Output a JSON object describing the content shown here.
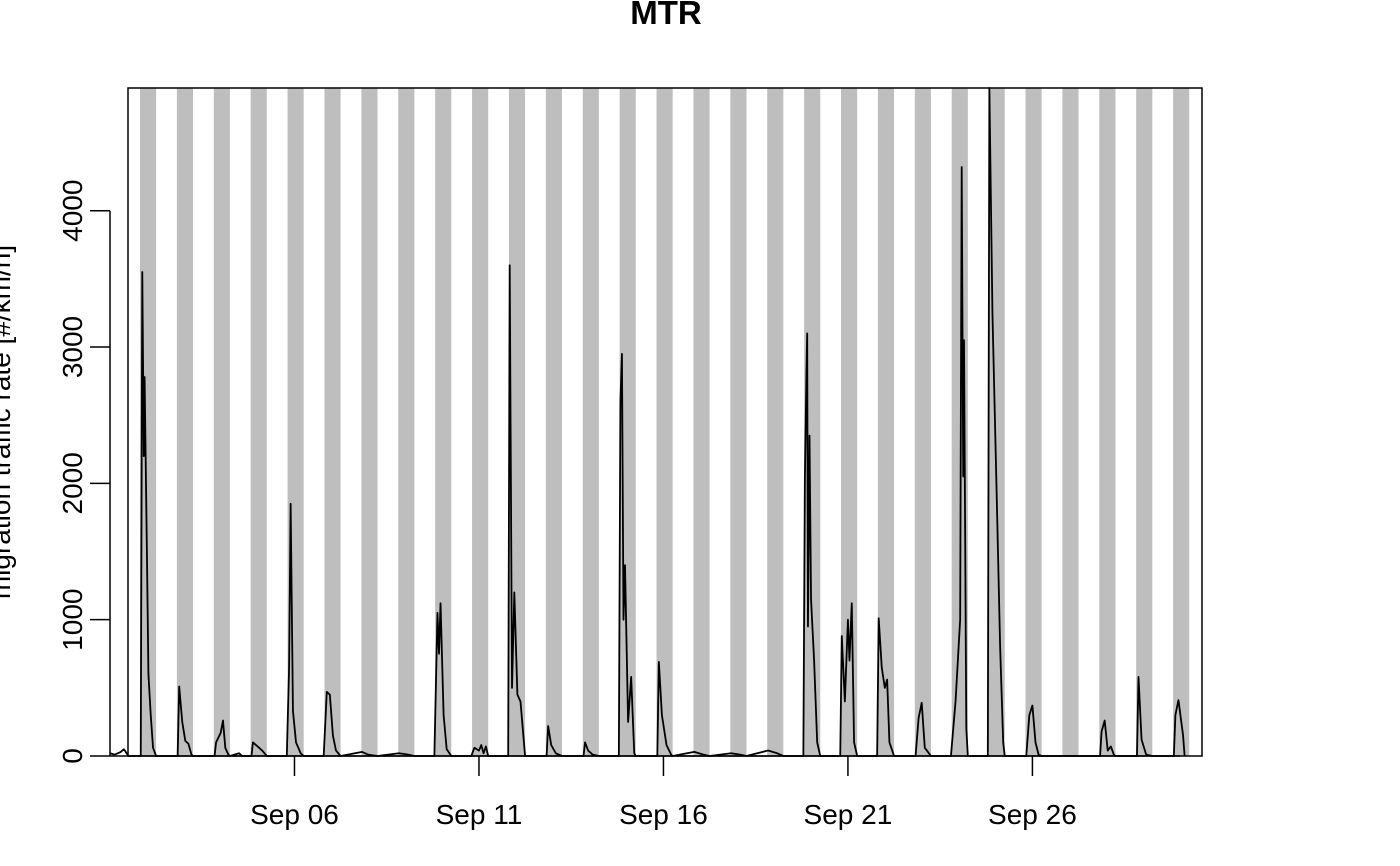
{
  "chart_data": {
    "type": "line",
    "title": "MTR",
    "ylabel": "migration traffic rate [#/km/h]",
    "xlabel": "",
    "x_range": [
      "2021-09-01",
      "2021-09-30"
    ],
    "ylim": [
      0,
      4900
    ],
    "y_ticks": [
      0,
      1000,
      2000,
      3000,
      4000
    ],
    "x_ticks": [
      {
        "date": "2021-09-06",
        "label": "Sep 06"
      },
      {
        "date": "2021-09-11",
        "label": "Sep 11"
      },
      {
        "date": "2021-09-16",
        "label": "Sep 16"
      },
      {
        "date": "2021-09-21",
        "label": "Sep 21"
      },
      {
        "date": "2021-09-26",
        "label": "Sep 26"
      }
    ],
    "grid": false,
    "legend": "none",
    "night_shading": {
      "color": "#bebebe",
      "nights": [
        [
          "2021-08-31 19:30",
          "2021-09-01 06:00"
        ],
        [
          "2021-09-01 19:30",
          "2021-09-02 06:00"
        ],
        [
          "2021-09-02 19:30",
          "2021-09-03 06:00"
        ],
        [
          "2021-09-03 19:30",
          "2021-09-04 06:00"
        ],
        [
          "2021-09-04 19:30",
          "2021-09-05 06:00"
        ],
        [
          "2021-09-05 19:30",
          "2021-09-06 06:00"
        ],
        [
          "2021-09-06 19:30",
          "2021-09-07 06:00"
        ],
        [
          "2021-09-07 19:30",
          "2021-09-08 06:00"
        ],
        [
          "2021-09-08 19:30",
          "2021-09-09 06:00"
        ],
        [
          "2021-09-09 19:30",
          "2021-09-10 06:00"
        ],
        [
          "2021-09-10 19:30",
          "2021-09-11 06:00"
        ],
        [
          "2021-09-11 19:30",
          "2021-09-12 06:00"
        ],
        [
          "2021-09-12 19:30",
          "2021-09-13 06:00"
        ],
        [
          "2021-09-13 19:30",
          "2021-09-14 06:00"
        ],
        [
          "2021-09-14 19:30",
          "2021-09-15 06:00"
        ],
        [
          "2021-09-15 19:30",
          "2021-09-16 06:00"
        ],
        [
          "2021-09-16 19:30",
          "2021-09-17 06:00"
        ],
        [
          "2021-09-17 19:30",
          "2021-09-18 06:00"
        ],
        [
          "2021-09-18 19:30",
          "2021-09-19 06:00"
        ],
        [
          "2021-09-19 19:30",
          "2021-09-20 06:00"
        ],
        [
          "2021-09-20 19:30",
          "2021-09-21 06:00"
        ],
        [
          "2021-09-21 19:30",
          "2021-09-22 06:00"
        ],
        [
          "2021-09-22 19:30",
          "2021-09-23 06:00"
        ],
        [
          "2021-09-23 19:30",
          "2021-09-24 06:00"
        ],
        [
          "2021-09-24 19:30",
          "2021-09-25 06:00"
        ],
        [
          "2021-09-25 19:30",
          "2021-09-26 06:00"
        ],
        [
          "2021-09-26 19:30",
          "2021-09-27 06:00"
        ],
        [
          "2021-09-27 19:30",
          "2021-09-28 06:00"
        ],
        [
          "2021-09-28 19:30",
          "2021-09-29 06:00"
        ],
        [
          "2021-09-29 19:30",
          "2021-09-30 06:00"
        ]
      ]
    },
    "line_color": "#000000",
    "series": [
      {
        "points": [
          [
            "2021-09-01 00:00",
            20
          ],
          [
            "2021-09-01 03:00",
            10
          ],
          [
            "2021-09-01 07:00",
            30
          ],
          [
            "2021-09-01 09:00",
            50
          ],
          [
            "2021-09-01 12:00",
            0
          ],
          [
            "2021-09-01 20:00",
            0
          ],
          [
            "2021-09-01 21:00",
            3550
          ],
          [
            "2021-09-01 22:00",
            2200
          ],
          [
            "2021-09-01 22:30",
            2780
          ],
          [
            "2021-09-02 00:00",
            1500
          ],
          [
            "2021-09-02 01:00",
            600
          ],
          [
            "2021-09-02 02:30",
            300
          ],
          [
            "2021-09-02 04:00",
            60
          ],
          [
            "2021-09-02 06:00",
            0
          ],
          [
            "2021-09-02 20:00",
            0
          ],
          [
            "2021-09-02 21:00",
            510
          ],
          [
            "2021-09-02 23:00",
            250
          ],
          [
            "2021-09-03 01:00",
            110
          ],
          [
            "2021-09-03 03:00",
            90
          ],
          [
            "2021-09-03 05:00",
            10
          ],
          [
            "2021-09-03 06:00",
            0
          ],
          [
            "2021-09-03 20:00",
            0
          ],
          [
            "2021-09-03 21:00",
            100
          ],
          [
            "2021-09-04 00:00",
            170
          ],
          [
            "2021-09-04 01:30",
            260
          ],
          [
            "2021-09-04 03:00",
            60
          ],
          [
            "2021-09-04 05:00",
            10
          ],
          [
            "2021-09-04 06:00",
            0
          ],
          [
            "2021-09-04 12:00",
            20
          ],
          [
            "2021-09-04 14:00",
            0
          ],
          [
            "2021-09-04 20:00",
            0
          ],
          [
            "2021-09-04 21:00",
            100
          ],
          [
            "2021-09-05 00:00",
            70
          ],
          [
            "2021-09-05 03:00",
            40
          ],
          [
            "2021-09-05 06:00",
            0
          ],
          [
            "2021-09-05 19:00",
            0
          ],
          [
            "2021-09-05 20:30",
            650
          ],
          [
            "2021-09-05 21:30",
            1850
          ],
          [
            "2021-09-05 23:00",
            330
          ],
          [
            "2021-09-06 01:00",
            100
          ],
          [
            "2021-09-06 04:00",
            20
          ],
          [
            "2021-09-06 06:00",
            0
          ],
          [
            "2021-09-06 19:00",
            0
          ],
          [
            "2021-09-06 21:00",
            470
          ],
          [
            "2021-09-06 23:00",
            450
          ],
          [
            "2021-09-07 01:00",
            150
          ],
          [
            "2021-09-07 03:00",
            40
          ],
          [
            "2021-09-07 06:00",
            0
          ],
          [
            "2021-09-07 20:00",
            30
          ],
          [
            "2021-09-08 00:00",
            10
          ],
          [
            "2021-09-08 06:00",
            0
          ],
          [
            "2021-09-08 20:00",
            20
          ],
          [
            "2021-09-09 02:00",
            10
          ],
          [
            "2021-09-09 06:00",
            0
          ],
          [
            "2021-09-09 19:00",
            0
          ],
          [
            "2021-09-09 21:00",
            1050
          ],
          [
            "2021-09-09 22:00",
            750
          ],
          [
            "2021-09-09 23:00",
            1120
          ],
          [
            "2021-09-10 01:00",
            300
          ],
          [
            "2021-09-10 03:00",
            50
          ],
          [
            "2021-09-10 06:00",
            0
          ],
          [
            "2021-09-10 19:00",
            0
          ],
          [
            "2021-09-10 21:00",
            60
          ],
          [
            "2021-09-11 00:00",
            40
          ],
          [
            "2021-09-11 01:30",
            80
          ],
          [
            "2021-09-11 03:00",
            20
          ],
          [
            "2021-09-11 04:30",
            70
          ],
          [
            "2021-09-11 06:00",
            0
          ],
          [
            "2021-09-11 19:00",
            0
          ],
          [
            "2021-09-11 20:00",
            3600
          ],
          [
            "2021-09-11 21:30",
            500
          ],
          [
            "2021-09-11 23:00",
            1200
          ],
          [
            "2021-09-12 01:00",
            450
          ],
          [
            "2021-09-12 03:00",
            400
          ],
          [
            "2021-09-12 06:00",
            0
          ],
          [
            "2021-09-12 20:00",
            0
          ],
          [
            "2021-09-12 21:00",
            220
          ],
          [
            "2021-09-12 23:00",
            80
          ],
          [
            "2021-09-13 02:00",
            20
          ],
          [
            "2021-09-13 06:00",
            0
          ],
          [
            "2021-09-13 20:00",
            0
          ],
          [
            "2021-09-13 21:00",
            100
          ],
          [
            "2021-09-13 23:00",
            40
          ],
          [
            "2021-09-14 02:00",
            10
          ],
          [
            "2021-09-14 06:00",
            0
          ],
          [
            "2021-09-14 19:00",
            0
          ],
          [
            "2021-09-14 20:00",
            2600
          ],
          [
            "2021-09-14 21:00",
            2950
          ],
          [
            "2021-09-14 22:00",
            1000
          ],
          [
            "2021-09-14 23:00",
            1400
          ],
          [
            "2021-09-15 01:00",
            250
          ],
          [
            "2021-09-15 03:00",
            580
          ],
          [
            "2021-09-15 05:00",
            20
          ],
          [
            "2021-09-15 06:00",
            0
          ],
          [
            "2021-09-15 20:00",
            0
          ],
          [
            "2021-09-15 21:00",
            690
          ],
          [
            "2021-09-15 23:00",
            300
          ],
          [
            "2021-09-16 02:00",
            80
          ],
          [
            "2021-09-16 05:00",
            10
          ],
          [
            "2021-09-16 06:00",
            0
          ],
          [
            "2021-09-16 20:00",
            30
          ],
          [
            "2021-09-17 02:00",
            10
          ],
          [
            "2021-09-17 06:00",
            0
          ],
          [
            "2021-09-17 20:00",
            20
          ],
          [
            "2021-09-18 02:00",
            10
          ],
          [
            "2021-09-18 06:00",
            0
          ],
          [
            "2021-09-18 20:00",
            40
          ],
          [
            "2021-09-19 02:00",
            20
          ],
          [
            "2021-09-19 06:00",
            0
          ],
          [
            "2021-09-19 19:00",
            0
          ],
          [
            "2021-09-19 20:00",
            2050
          ],
          [
            "2021-09-19 21:00",
            2800
          ],
          [
            "2021-09-19 21:30",
            3100
          ],
          [
            "2021-09-19 22:00",
            950
          ],
          [
            "2021-09-19 23:00",
            2350
          ],
          [
            "2021-09-20 00:00",
            1150
          ],
          [
            "2021-09-20 02:00",
            700
          ],
          [
            "2021-09-20 04:00",
            100
          ],
          [
            "2021-09-20 06:00",
            0
          ],
          [
            "2021-09-20 19:00",
            0
          ],
          [
            "2021-09-20 20:00",
            880
          ],
          [
            "2021-09-20 22:00",
            400
          ],
          [
            "2021-09-21 00:00",
            1000
          ],
          [
            "2021-09-21 01:00",
            700
          ],
          [
            "2021-09-21 02:30",
            1120
          ],
          [
            "2021-09-21 04:00",
            100
          ],
          [
            "2021-09-21 06:00",
            0
          ],
          [
            "2021-09-21 19:00",
            0
          ],
          [
            "2021-09-21 20:00",
            1010
          ],
          [
            "2021-09-21 22:00",
            650
          ],
          [
            "2021-09-22 00:00",
            500
          ],
          [
            "2021-09-22 01:30",
            560
          ],
          [
            "2021-09-22 03:00",
            100
          ],
          [
            "2021-09-22 06:00",
            0
          ],
          [
            "2021-09-22 20:00",
            0
          ],
          [
            "2021-09-22 22:00",
            280
          ],
          [
            "2021-09-23 00:00",
            390
          ],
          [
            "2021-09-23 02:00",
            60
          ],
          [
            "2021-09-23 06:00",
            0
          ],
          [
            "2021-09-23 19:00",
            0
          ],
          [
            "2021-09-23 22:00",
            400
          ],
          [
            "2021-09-24 01:00",
            1000
          ],
          [
            "2021-09-24 02:00",
            4320
          ],
          [
            "2021-09-24 03:00",
            2050
          ],
          [
            "2021-09-24 03:30",
            3050
          ],
          [
            "2021-09-24 05:00",
            200
          ],
          [
            "2021-09-24 06:00",
            0
          ],
          [
            "2021-09-24 19:00",
            0
          ],
          [
            "2021-09-24 20:00",
            4900
          ],
          [
            "2021-09-24 22:00",
            3250
          ],
          [
            "2021-09-25 01:00",
            1800
          ],
          [
            "2021-09-25 03:00",
            800
          ],
          [
            "2021-09-25 05:00",
            100
          ],
          [
            "2021-09-25 06:00",
            0
          ],
          [
            "2021-09-25 20:00",
            0
          ],
          [
            "2021-09-25 22:00",
            300
          ],
          [
            "2021-09-26 00:00",
            370
          ],
          [
            "2021-09-26 02:00",
            100
          ],
          [
            "2021-09-26 04:00",
            10
          ],
          [
            "2021-09-26 06:00",
            0
          ],
          [
            "2021-09-27 20:00",
            0
          ],
          [
            "2021-09-27 21:00",
            180
          ],
          [
            "2021-09-27 23:00",
            260
          ],
          [
            "2021-09-28 01:00",
            40
          ],
          [
            "2021-09-28 03:00",
            70
          ],
          [
            "2021-09-28 05:00",
            10
          ],
          [
            "2021-09-28 06:00",
            0
          ],
          [
            "2021-09-28 20:00",
            0
          ],
          [
            "2021-09-28 21:00",
            580
          ],
          [
            "2021-09-28 23:00",
            120
          ],
          [
            "2021-09-29 02:00",
            10
          ],
          [
            "2021-09-29 06:00",
            0
          ],
          [
            "2021-09-29 20:00",
            0
          ],
          [
            "2021-09-29 21:00",
            300
          ],
          [
            "2021-09-29 23:00",
            410
          ],
          [
            "2021-09-30 02:00",
            150
          ],
          [
            "2021-09-30 03:00",
            0
          ]
        ]
      }
    ]
  }
}
